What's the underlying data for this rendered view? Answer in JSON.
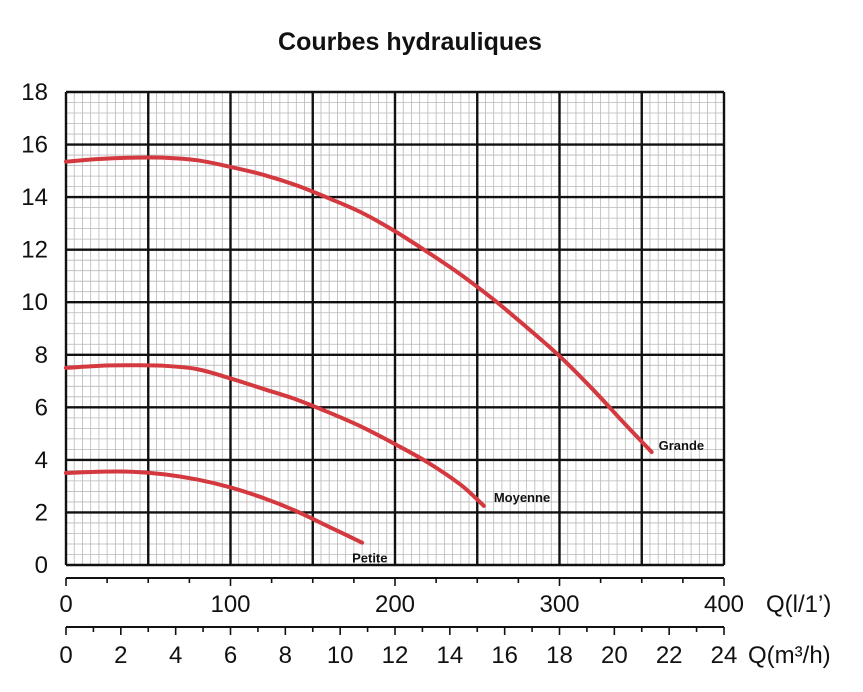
{
  "chart_data": {
    "type": "line",
    "title": "Courbes hydrauliques",
    "xlabel": "Q(l/1’)",
    "xlabel2": "Q(m³/h)",
    "ylabel": "",
    "xlim": [
      0,
      400
    ],
    "ylim": [
      0,
      18
    ],
    "xlim2": [
      0,
      24
    ],
    "x_ticks": [
      0,
      100,
      200,
      300,
      400
    ],
    "x2_ticks": [
      0,
      2,
      4,
      6,
      8,
      10,
      12,
      14,
      16,
      18,
      20,
      22,
      24
    ],
    "y_ticks": [
      0,
      2,
      4,
      6,
      8,
      10,
      12,
      14,
      16,
      18
    ],
    "grid": true,
    "series": [
      {
        "name": "Grande",
        "color": "#d3393f",
        "x": [
          0,
          20,
          40,
          60,
          80,
          100,
          120,
          140,
          160,
          180,
          200,
          220,
          240,
          260,
          280,
          300,
          320,
          340,
          356
        ],
        "y": [
          15.35,
          15.45,
          15.5,
          15.5,
          15.4,
          15.15,
          14.85,
          14.45,
          13.95,
          13.4,
          12.7,
          11.9,
          11.05,
          10.1,
          9.05,
          7.95,
          6.7,
          5.35,
          4.3
        ]
      },
      {
        "name": "Moyenne",
        "color": "#d3393f",
        "x": [
          0,
          20,
          40,
          60,
          80,
          100,
          120,
          140,
          160,
          180,
          200,
          220,
          240,
          254
        ],
        "y": [
          7.5,
          7.58,
          7.6,
          7.58,
          7.45,
          7.1,
          6.7,
          6.3,
          5.8,
          5.25,
          4.6,
          3.9,
          3.05,
          2.25
        ]
      },
      {
        "name": "Petite",
        "color": "#d3393f",
        "x": [
          0,
          20,
          40,
          60,
          80,
          100,
          120,
          140,
          160,
          180
        ],
        "y": [
          3.5,
          3.55,
          3.55,
          3.45,
          3.25,
          2.95,
          2.55,
          2.05,
          1.45,
          0.85
        ]
      }
    ]
  }
}
